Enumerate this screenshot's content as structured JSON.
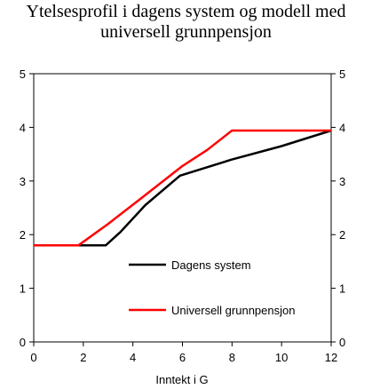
{
  "chart_data": {
    "type": "line",
    "title_lines": [
      "Ytelsesprofil i dagens system og modell med",
      "universell grunnpensjon"
    ],
    "xlabel": "Inntekt i G",
    "ylabel": "",
    "xlim": [
      0,
      12
    ],
    "ylim": [
      0,
      5
    ],
    "x_ticks": [
      0,
      2,
      4,
      6,
      8,
      10,
      12
    ],
    "y_ticks": [
      0,
      1,
      2,
      3,
      4,
      5
    ],
    "secondary_y_axis": true,
    "grid": false,
    "legend_position": "inside-center",
    "series": [
      {
        "name": "Dagens system",
        "color": "#000000",
        "x": [
          0,
          1.8,
          2.9,
          3.5,
          4.5,
          5.9,
          8,
          10,
          12
        ],
        "y": [
          1.8,
          1.8,
          1.8,
          2.05,
          2.55,
          3.1,
          3.4,
          3.65,
          3.94
        ]
      },
      {
        "name": "Universell grunnpensjon",
        "color": "#ff0000",
        "x": [
          0,
          1.8,
          3,
          4.4,
          6,
          7,
          8,
          10,
          12
        ],
        "y": [
          1.8,
          1.8,
          2.2,
          2.7,
          3.28,
          3.58,
          3.94,
          3.94,
          3.94
        ]
      }
    ]
  }
}
